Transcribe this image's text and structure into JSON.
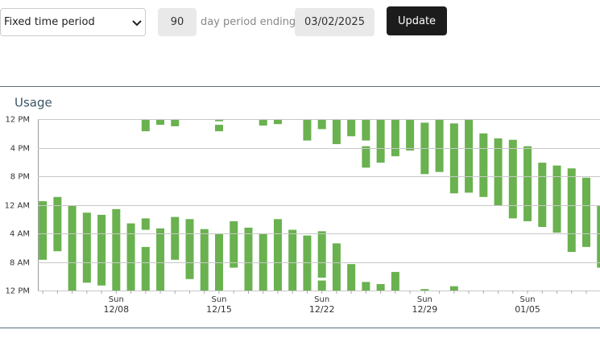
{
  "controls": {
    "period_select": "Fixed time period",
    "days": 90,
    "days_label": "day period ending",
    "end_date": "03/02/2025",
    "button": "Update"
  },
  "chart_data": {
    "type": "rangebar",
    "title": "Usage",
    "color": "#6ab150",
    "grid": true,
    "tick_weekday": "Sun",
    "categories": [
      null,
      null,
      null,
      null,
      null,
      "12/08",
      null,
      null,
      null,
      null,
      null,
      null,
      "12/15",
      null,
      null,
      null,
      null,
      null,
      null,
      "12/22",
      null,
      null,
      null,
      null,
      null,
      null,
      "12/29",
      null,
      null,
      null,
      null,
      null,
      null,
      "01/05",
      null,
      null,
      null,
      null,
      null
    ],
    "values": [
      [
        [
          23.5,
          31.7
        ]
      ],
      [
        [
          22.9,
          30.5
        ]
      ],
      [
        [
          24.1,
          36
        ]
      ],
      [
        [
          25.1,
          34.9
        ]
      ],
      [
        [
          25.4,
          35.3
        ]
      ],
      [
        [
          24.6,
          36
        ]
      ],
      [
        [
          26.6,
          36
        ]
      ],
      [
        [
          12,
          13.7
        ],
        [
          25.9,
          27.5
        ],
        [
          29.9,
          36
        ]
      ],
      [
        [
          12,
          12.8
        ],
        [
          27.3,
          36
        ]
      ],
      [
        [
          12,
          13
        ],
        [
          25.7,
          31.7
        ]
      ],
      [
        [
          26,
          34.4
        ]
      ],
      [
        [
          27.4,
          36
        ]
      ],
      [
        [
          12,
          12.3
        ],
        [
          12.8,
          13.7
        ],
        [
          28.1,
          36
        ]
      ],
      [
        [
          26.3,
          32.8
        ]
      ],
      [
        [
          27.2,
          36
        ]
      ],
      [
        [
          12,
          12.9
        ],
        [
          28,
          36
        ]
      ],
      [
        [
          12,
          12.7
        ],
        [
          26,
          36
        ]
      ],
      [
        [
          27.5,
          36
        ]
      ],
      [
        [
          12,
          15
        ],
        [
          28.3,
          36
        ]
      ],
      [
        [
          12,
          13.4
        ],
        [
          27.7,
          34.2
        ],
        [
          34.6,
          36
        ]
      ],
      [
        [
          12,
          15.5
        ],
        [
          29.4,
          36
        ]
      ],
      [
        [
          12,
          14.4
        ],
        [
          32.3,
          36
        ]
      ],
      [
        [
          12,
          15
        ],
        [
          15.8,
          18.8
        ],
        [
          34.8,
          36
        ]
      ],
      [
        [
          12,
          18.1
        ],
        [
          35.1,
          36
        ]
      ],
      [
        [
          12,
          17.2
        ],
        [
          33.4,
          36
        ]
      ],
      [
        [
          12,
          16.4
        ]
      ],
      [
        [
          12.5,
          19.7
        ],
        [
          35.8,
          36
        ]
      ],
      [
        [
          12,
          19.4
        ]
      ],
      [
        [
          12.6,
          22.4
        ],
        [
          35.4,
          36
        ]
      ],
      [
        [
          12,
          22.3
        ]
      ],
      [
        [
          14,
          22.9
        ]
      ],
      [
        [
          14.7,
          24.1
        ]
      ],
      [
        [
          14.9,
          25.9
        ]
      ],
      [
        [
          15.8,
          26.3
        ]
      ],
      [
        [
          18.1,
          27.1
        ]
      ],
      [
        [
          18.5,
          27.9
        ]
      ],
      [
        [
          18.9,
          30.6
        ]
      ],
      [
        [
          20.2,
          29.9
        ]
      ],
      [
        [
          24.1,
          32.8
        ]
      ]
    ],
    "ylim": [
      36,
      12
    ],
    "yticks": [
      {
        "value": 12,
        "label": "12 PM"
      },
      {
        "value": 16,
        "label": "4 PM"
      },
      {
        "value": 20,
        "label": "8 PM"
      },
      {
        "value": 24,
        "label": "12 AM"
      },
      {
        "value": 28,
        "label": "4 AM"
      },
      {
        "value": 32,
        "label": "8 AM"
      },
      {
        "value": 36,
        "label": "12 PM"
      }
    ]
  }
}
